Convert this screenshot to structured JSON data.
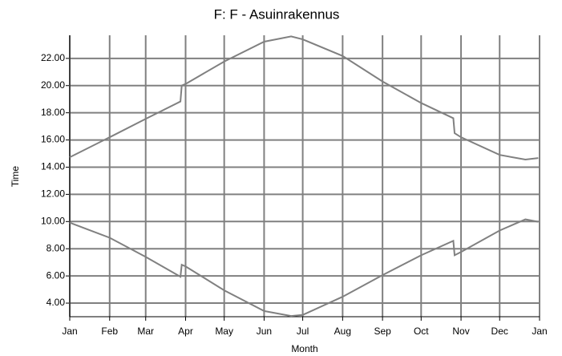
{
  "chart_data": {
    "type": "line",
    "title": "F: F - Asuinrakennus",
    "x_label": "Month",
    "y_label": "Time",
    "x": [
      0,
      31,
      59,
      86,
      87,
      90,
      120,
      151,
      172,
      181,
      212,
      243,
      273,
      298,
      299,
      304,
      334,
      354,
      364
    ],
    "series": [
      {
        "color": "#808080",
        "values": [
          14.73,
          16.2,
          17.55,
          18.83,
          20.0,
          20.12,
          21.77,
          23.23,
          23.62,
          23.4,
          22.18,
          20.3,
          18.72,
          17.6,
          16.5,
          16.2,
          14.9,
          14.56,
          14.67
        ]
      },
      {
        "color": "#808080",
        "values": [
          9.92,
          8.81,
          7.4,
          5.94,
          6.82,
          6.7,
          4.94,
          3.42,
          3.05,
          3.13,
          4.47,
          6.06,
          7.52,
          8.58,
          7.52,
          7.76,
          9.34,
          10.16,
          9.98
        ]
      }
    ],
    "xlim": [
      0,
      365
    ],
    "xticks": [
      {
        "value": 0,
        "label": "Jan"
      },
      {
        "value": 31,
        "label": "Feb"
      },
      {
        "value": 59,
        "label": "Mar"
      },
      {
        "value": 90,
        "label": "Apr"
      },
      {
        "value": 120,
        "label": "May"
      },
      {
        "value": 151,
        "label": "Jun"
      },
      {
        "value": 181,
        "label": "Jul"
      },
      {
        "value": 212,
        "label": "Aug"
      },
      {
        "value": 243,
        "label": "Sep"
      },
      {
        "value": 273,
        "label": "Oct"
      },
      {
        "value": 304,
        "label": "Nov"
      },
      {
        "value": 334,
        "label": "Dec"
      },
      {
        "value": 365,
        "label": "Jan"
      }
    ],
    "ylim": [
      3,
      23.7
    ],
    "yticks": [
      {
        "value": 4,
        "label": "4.00"
      },
      {
        "value": 6,
        "label": "6.00"
      },
      {
        "value": 8,
        "label": "8.00"
      },
      {
        "value": 10,
        "label": "10.00"
      },
      {
        "value": 12,
        "label": "12.00"
      },
      {
        "value": 14,
        "label": "14.00"
      },
      {
        "value": 16,
        "label": "16.00"
      },
      {
        "value": 18,
        "label": "18.00"
      },
      {
        "value": 20,
        "label": "20.00"
      },
      {
        "value": 22,
        "label": "22.00"
      }
    ],
    "grid": true
  }
}
